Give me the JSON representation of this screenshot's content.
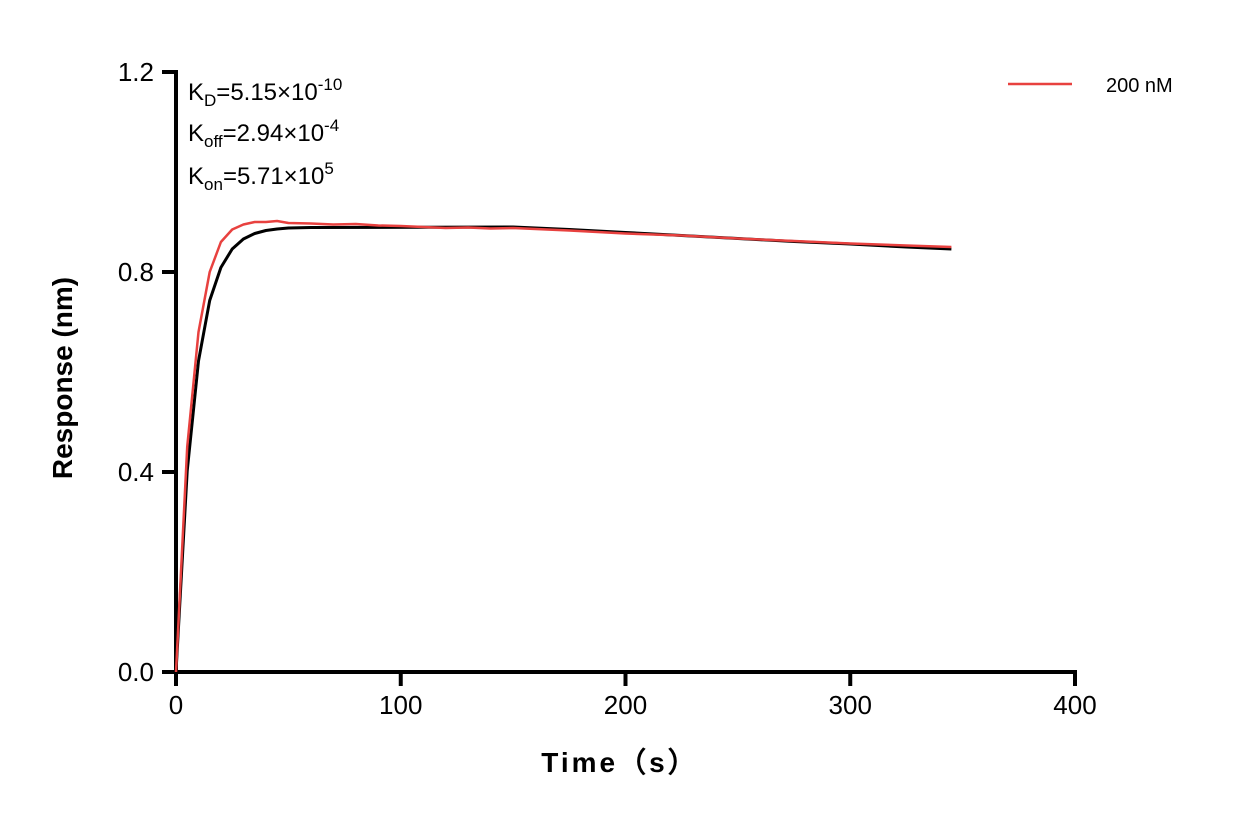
{
  "chart_data": {
    "type": "line",
    "xlabel": "Time（s）",
    "ylabel": "Response (nm)",
    "xlim": [
      0,
      400
    ],
    "ylim": [
      0,
      1.2
    ],
    "xticks": [
      "0",
      "100",
      "200",
      "300",
      "400"
    ],
    "yticks": [
      "0.0",
      "0.4",
      "0.8",
      "1.2"
    ],
    "grid": false,
    "legend_position": "top-right",
    "annotations": {
      "kd": {
        "base": "K",
        "sub": "D",
        "value": "=5.15×10",
        "exp": "-10"
      },
      "koff": {
        "base": "K",
        "sub": "off",
        "value": "=2.94×10",
        "exp": "-4"
      },
      "kon": {
        "base": "K",
        "sub": "on",
        "value": "=5.71×10",
        "exp": "5"
      }
    },
    "series": [
      {
        "name": "200 nM",
        "color": "#e8413f",
        "x": [
          0,
          5,
          10,
          15,
          20,
          25,
          30,
          35,
          40,
          45,
          50,
          60,
          70,
          80,
          90,
          100,
          110,
          120,
          130,
          140,
          150,
          175,
          200,
          225,
          250,
          275,
          300,
          325,
          345
        ],
        "y": [
          0,
          0.45,
          0.68,
          0.8,
          0.86,
          0.885,
          0.895,
          0.9,
          0.9,
          0.902,
          0.898,
          0.897,
          0.895,
          0.896,
          0.893,
          0.892,
          0.89,
          0.888,
          0.889,
          0.887,
          0.888,
          0.883,
          0.877,
          0.873,
          0.867,
          0.862,
          0.857,
          0.853,
          0.85
        ]
      },
      {
        "role": "fit",
        "color": "#000000",
        "x": [
          0,
          5,
          10,
          15,
          20,
          25,
          30,
          35,
          40,
          45,
          50,
          60,
          150,
          175,
          200,
          225,
          250,
          275,
          300,
          325,
          345
        ],
        "y": [
          0,
          0.402,
          0.622,
          0.743,
          0.809,
          0.846,
          0.866,
          0.877,
          0.883,
          0.886,
          0.888,
          0.889,
          0.89,
          0.885,
          0.879,
          0.873,
          0.867,
          0.861,
          0.856,
          0.85,
          0.846
        ]
      }
    ]
  }
}
